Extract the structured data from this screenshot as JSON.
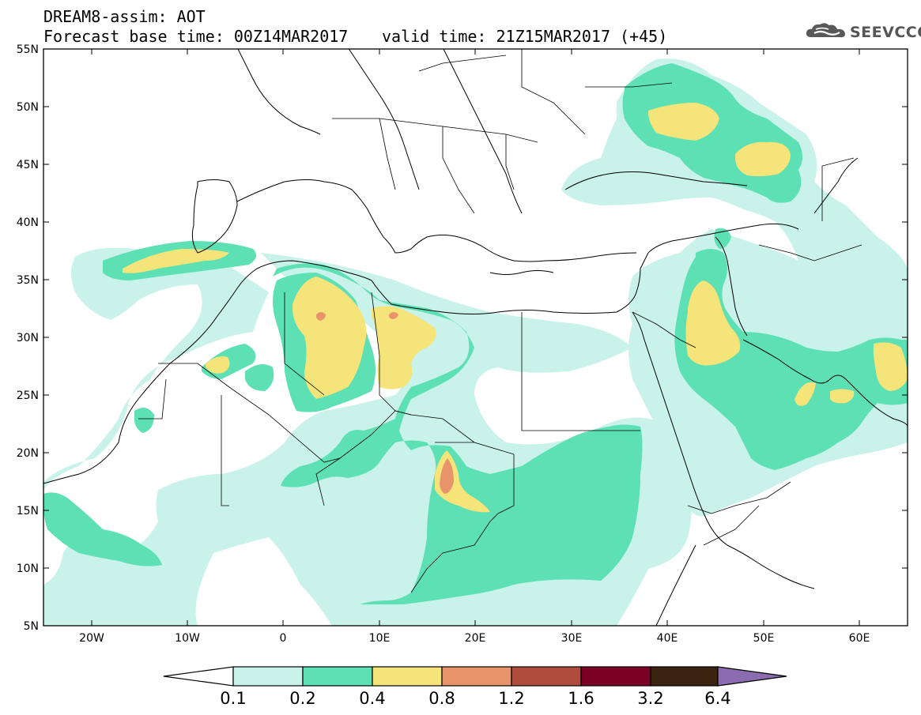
{
  "title": {
    "line1": "DREAM8-assim: AOT",
    "line2": "Forecast base time: 00Z14MAR2017",
    "valid": "valid time: 21Z15MAR2017 (+45)"
  },
  "logo": {
    "text": "SEEVCCC",
    "icon": "cloud-icon"
  },
  "map": {
    "lon_range": [
      -25,
      65
    ],
    "lat_range": [
      5,
      55
    ],
    "lat_ticks": [
      "55N",
      "50N",
      "45N",
      "40N",
      "35N",
      "30N",
      "25N",
      "20N",
      "15N",
      "10N",
      "5N"
    ],
    "lon_ticks": [
      "20W",
      "10W",
      "0",
      "10E",
      "20E",
      "30E",
      "40E",
      "50E",
      "60E"
    ]
  },
  "colorbar": {
    "levels": [
      "0.1",
      "0.2",
      "0.4",
      "0.8",
      "1.2",
      "1.6",
      "3.2",
      "6.4"
    ],
    "colors": [
      "#c8f2ea",
      "#5ce0b4",
      "#f5e47a",
      "#e8946a",
      "#b04c3c",
      "#7a0024",
      "#3a2410",
      "#8c6cb0"
    ]
  }
}
